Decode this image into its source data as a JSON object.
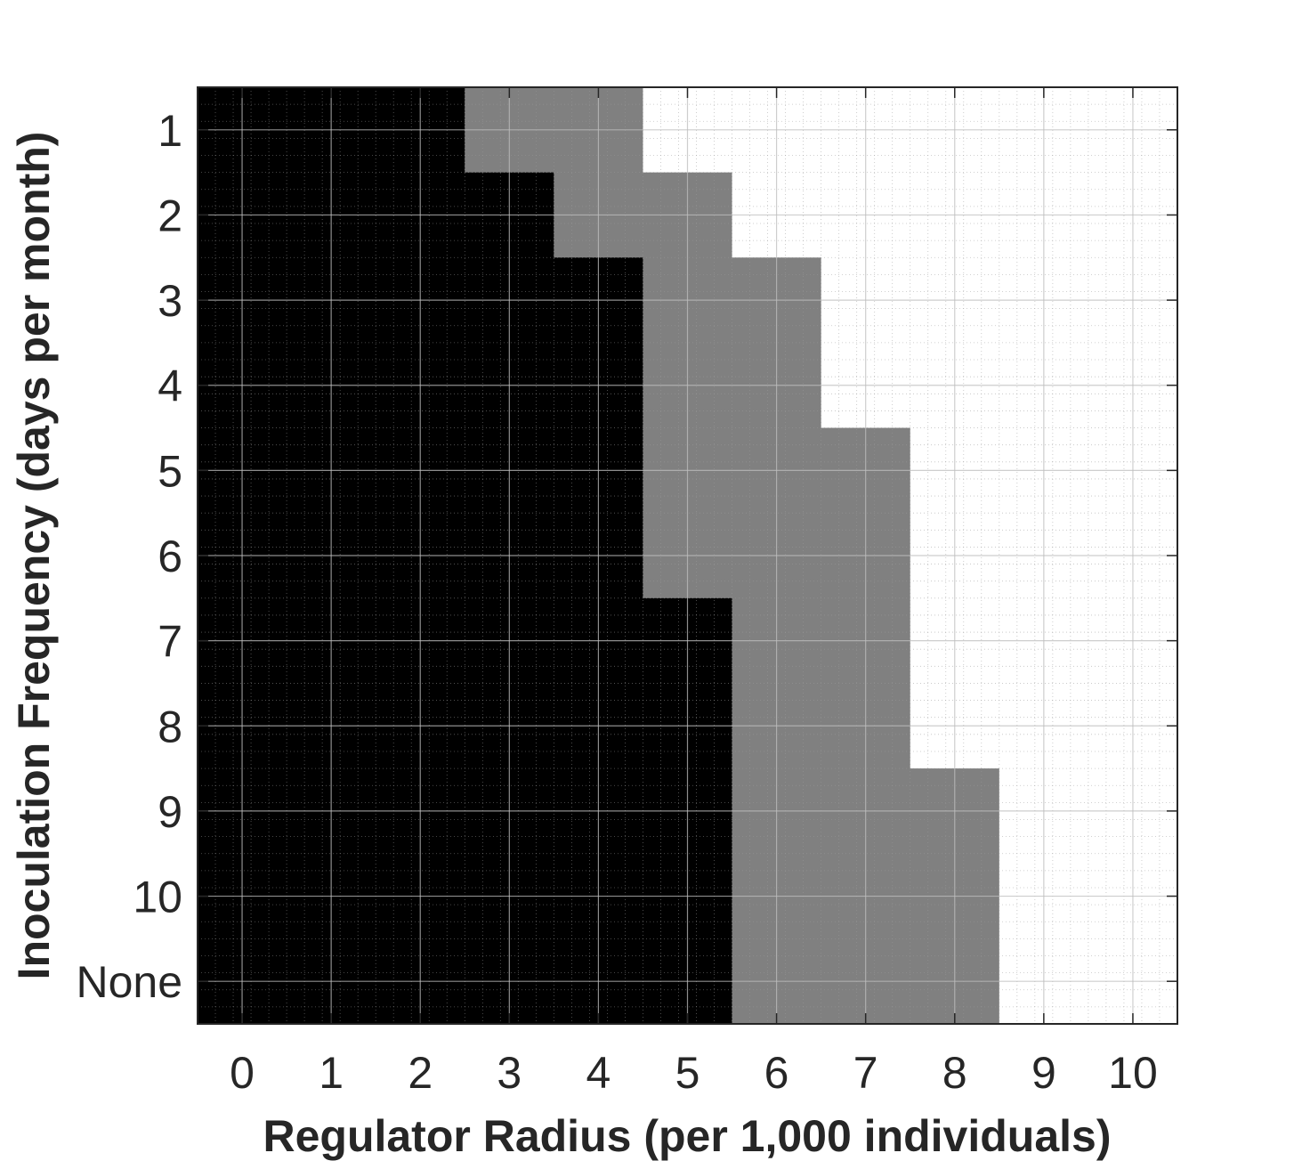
{
  "chart_data": {
    "type": "heatmap",
    "title": "",
    "xlabel": "Regulator Radius (per 1,000 individuals)",
    "ylabel": "Inoculation Frequency (days per month)",
    "x_categories": [
      "0",
      "1",
      "2",
      "3",
      "4",
      "5",
      "6",
      "7",
      "8",
      "9",
      "10"
    ],
    "y_categories": [
      "1",
      "2",
      "3",
      "4",
      "5",
      "6",
      "7",
      "8",
      "9",
      "10",
      "None"
    ],
    "levels": {
      "0": "#000000",
      "1": "#808080",
      "2": "#ffffff"
    },
    "values": [
      [
        0,
        0,
        0,
        1,
        1,
        2,
        2,
        2,
        2,
        2,
        2
      ],
      [
        0,
        0,
        0,
        0,
        1,
        1,
        2,
        2,
        2,
        2,
        2
      ],
      [
        0,
        0,
        0,
        0,
        0,
        1,
        1,
        2,
        2,
        2,
        2
      ],
      [
        0,
        0,
        0,
        0,
        0,
        1,
        1,
        2,
        2,
        2,
        2
      ],
      [
        0,
        0,
        0,
        0,
        0,
        1,
        1,
        1,
        2,
        2,
        2
      ],
      [
        0,
        0,
        0,
        0,
        0,
        1,
        1,
        1,
        2,
        2,
        2
      ],
      [
        0,
        0,
        0,
        0,
        0,
        0,
        1,
        1,
        2,
        2,
        2
      ],
      [
        0,
        0,
        0,
        0,
        0,
        0,
        1,
        1,
        2,
        2,
        2
      ],
      [
        0,
        0,
        0,
        0,
        0,
        0,
        1,
        1,
        1,
        2,
        2
      ],
      [
        0,
        0,
        0,
        0,
        0,
        0,
        1,
        1,
        1,
        2,
        2
      ],
      [
        0,
        0,
        0,
        0,
        0,
        0,
        1,
        1,
        1,
        2,
        2
      ]
    ],
    "grid": true,
    "legend": "none"
  }
}
